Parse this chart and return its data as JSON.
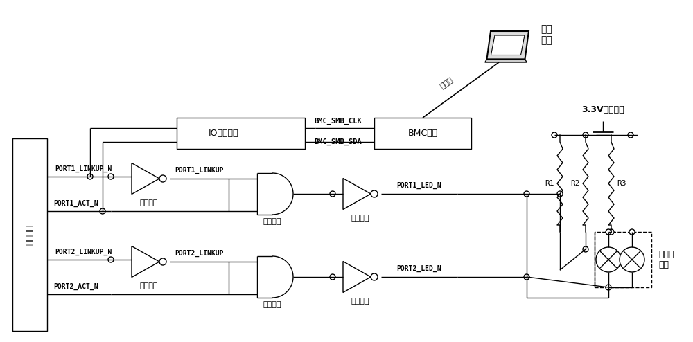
{
  "bg_color": "#ffffff",
  "fig_width": 10.0,
  "fig_height": 4.94,
  "dpi": 100,
  "labels": {
    "port1_linkup_n": "PORT1_LINKUP_N",
    "port1_act_n": "PORT1_ACT_N",
    "port2_linkup_n": "PORT2_LINKUP_N",
    "port2_act_n": "PORT2_ACT_N",
    "port1_linkup": "PORT1_LINKUP",
    "port2_linkup": "PORT2_LINKUP",
    "port1_led_n": "PORT1_LED_N",
    "port2_led_n": "PORT2_LED_N",
    "not1": "第一非门",
    "not2": "第二非门",
    "not3": "第三非门",
    "not4": "第四非门",
    "and1": "第一与门",
    "and2": "第二与门",
    "io_chip": "IO拓展芗片",
    "bmc_chip": "BMC芗片",
    "bmc_clk": "BMC_SMB_CLK",
    "bmc_sda": "BMC_SMB_SDA",
    "nic": "网卡芗片",
    "power": "3.3V辅助电源",
    "monitor": "监控\n终端",
    "ethernet": "以太网",
    "led_label": "双色指\n示灯",
    "R1": "R1",
    "R2": "R2",
    "R3": "R3"
  }
}
